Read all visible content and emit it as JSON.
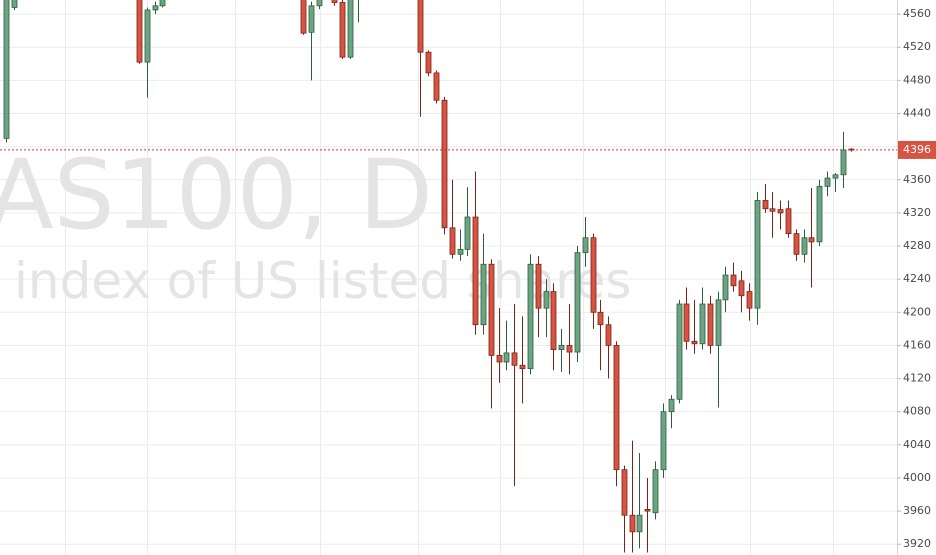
{
  "chart_data": {
    "type": "candlestick",
    "watermark_symbol": "AS100, D",
    "watermark_description": "index of US listed shares",
    "open": [
      4410,
      4568,
      null,
      null,
      null,
      null,
      null,
      null,
      null,
      null,
      null,
      null,
      null,
      null,
      null,
      null,
      null,
      4600,
      4502,
      4565,
      4570,
      null,
      null,
      null,
      null,
      null,
      null,
      null,
      null,
      null,
      null,
      null,
      null,
      null,
      null,
      null,
      null,
      null,
      4590,
      4538,
      4570,
      null,
      4580,
      4574,
      4508,
      4580,
      null,
      null,
      null,
      null,
      null,
      null,
      null,
      4600,
      4514,
      4489,
      4456,
      4302,
      4270,
      4276,
      4315,
      4185,
      4258,
      4148,
      4140,
      4151,
      4136,
      4132,
      4258,
      4205,
      4225,
      4155,
      4160,
      4152,
      4272,
      4290,
      4200,
      4185,
      4160,
      4010,
      3955,
      3935,
      3962,
      3958,
      4010,
      4080,
      4095,
      4210,
      4165,
      4162,
      4210,
      4160,
      4215,
      4245,
      4238,
      4225,
      4205,
      4335,
      4325,
      4324,
      4325,
      4295,
      4270,
      4290,
      4285,
      4352,
      4362,
      4366,
      4397
    ],
    "high": [
      4600,
      4600,
      null,
      null,
      null,
      null,
      null,
      null,
      null,
      null,
      null,
      null,
      null,
      null,
      null,
      null,
      null,
      4600,
      4568,
      4575,
      4590,
      null,
      null,
      null,
      null,
      null,
      null,
      null,
      null,
      null,
      null,
      null,
      null,
      null,
      null,
      null,
      null,
      null,
      4600,
      4575,
      4590,
      null,
      4590,
      4585,
      4600,
      4600,
      null,
      null,
      null,
      null,
      null,
      null,
      null,
      4600,
      4516,
      4492,
      4460,
      4360,
      4300,
      4351,
      4370,
      4295,
      4264,
      4205,
      4190,
      4210,
      4195,
      4270,
      4268,
      4240,
      4235,
      4180,
      4210,
      4280,
      4315,
      4295,
      4215,
      4195,
      4165,
      4015,
      4045,
      4030,
      4000,
      4020,
      4090,
      4100,
      4215,
      4230,
      4215,
      4230,
      4220,
      4225,
      4255,
      4260,
      4250,
      4235,
      4345,
      4355,
      4345,
      4335,
      4335,
      4300,
      4300,
      4350,
      4360,
      4370,
      4368,
      4418,
      4398
    ],
    "low": [
      4405,
      4565,
      null,
      null,
      null,
      null,
      null,
      null,
      null,
      null,
      null,
      null,
      null,
      null,
      null,
      null,
      null,
      4500,
      4459,
      4560,
      4568,
      null,
      null,
      null,
      null,
      null,
      null,
      null,
      null,
      null,
      null,
      null,
      null,
      null,
      null,
      null,
      null,
      null,
      4535,
      4480,
      4566,
      null,
      4570,
      4506,
      4506,
      4550,
      null,
      null,
      null,
      null,
      null,
      null,
      null,
      4436,
      4485,
      4452,
      4294,
      4265,
      4262,
      4268,
      4173,
      4173,
      4084,
      4115,
      4130,
      3990,
      4090,
      4125,
      4170,
      4170,
      4130,
      4128,
      4125,
      4140,
      4255,
      4180,
      4130,
      4120,
      3990,
      3910,
      3910,
      3915,
      3910,
      3950,
      4000,
      4060,
      4090,
      4155,
      4150,
      4155,
      4150,
      4085,
      4200,
      4225,
      4200,
      4190,
      4185,
      4320,
      4290,
      4300,
      4290,
      4262,
      4260,
      4230,
      4280,
      4340,
      4345,
      4350,
      4394
    ],
    "close": [
      4600,
      4600,
      null,
      null,
      null,
      null,
      null,
      null,
      null,
      null,
      null,
      null,
      null,
      null,
      null,
      null,
      null,
      4502,
      4565,
      4570,
      4585,
      null,
      null,
      null,
      null,
      null,
      null,
      null,
      null,
      null,
      null,
      null,
      null,
      null,
      null,
      null,
      null,
      null,
      4537,
      4570,
      4585,
      null,
      4574,
      4508,
      4600,
      4590,
      null,
      null,
      null,
      null,
      null,
      null,
      null,
      4514,
      4489,
      4456,
      4302,
      4270,
      4276,
      4315,
      4185,
      4258,
      4148,
      4140,
      4151,
      4136,
      4132,
      4258,
      4205,
      4225,
      4155,
      4160,
      4152,
      4272,
      4290,
      4200,
      4185,
      4160,
      4010,
      3955,
      3935,
      3955,
      3960,
      4010,
      4080,
      4095,
      4210,
      4165,
      4162,
      4210,
      4160,
      4215,
      4245,
      4232,
      4220,
      4205,
      4335,
      4325,
      4322,
      4320,
      4295,
      4270,
      4290,
      4285,
      4352,
      4362,
      4366,
      4396,
      4396
    ],
    "up_color": "#6ba583",
    "down_color": "#d75442",
    "last_price": 4396,
    "ylim": [
      3907,
      4577
    ],
    "yticks": [
      3920,
      3960,
      4000,
      4040,
      4080,
      4120,
      4160,
      4200,
      4240,
      4280,
      4320,
      4360,
      4400,
      4440,
      4480,
      4520,
      4560
    ],
    "grid": true
  }
}
